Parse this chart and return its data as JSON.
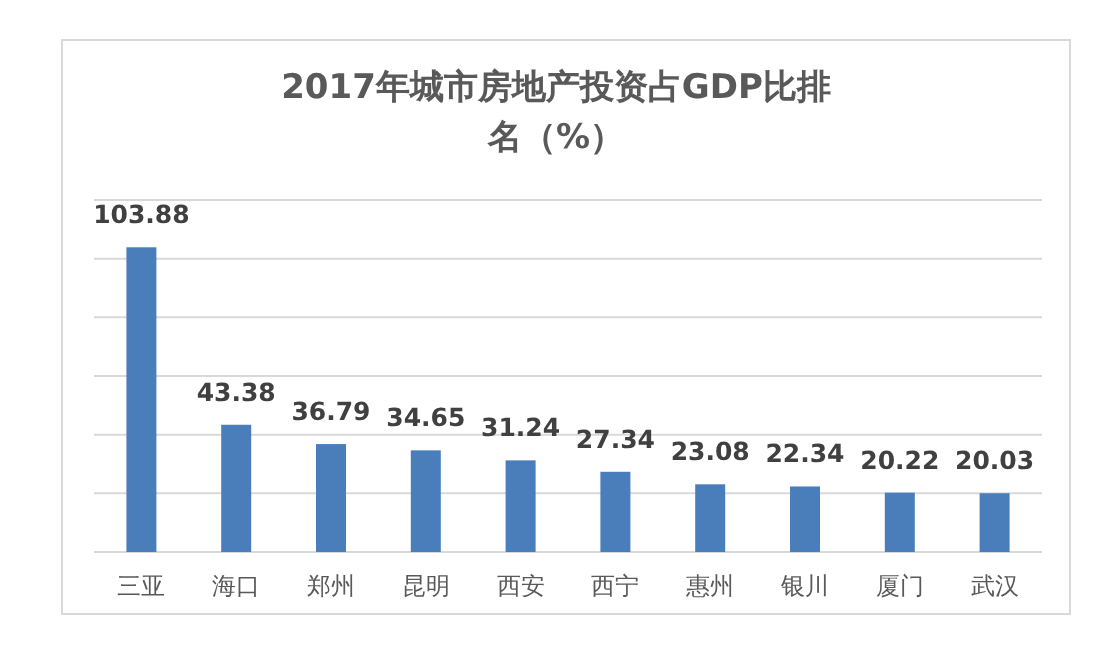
{
  "chart_data": {
    "type": "bar",
    "title": "2017年城市房地产投资占GDP比排名（%）",
    "categories": [
      "三亚",
      "海口",
      "郑州",
      "昆明",
      "西安",
      "西宁",
      "惠州",
      "银川",
      "厦门",
      "武汉"
    ],
    "values": [
      103.88,
      43.38,
      36.79,
      34.65,
      31.24,
      27.34,
      23.08,
      22.34,
      20.22,
      20.03
    ],
    "color": "#4a7ebb",
    "ylim": [
      0,
      120
    ],
    "yticks": [
      {
        "value": 0,
        "label": null
      },
      {
        "value": 20,
        "label": null
      },
      {
        "value": 40,
        "label": null
      },
      {
        "value": 60,
        "label": null
      },
      {
        "value": 80,
        "label": null
      },
      {
        "value": 100,
        "label": null
      },
      {
        "value": 120,
        "label": null
      }
    ],
    "grid": "y",
    "data_labels": true
  }
}
